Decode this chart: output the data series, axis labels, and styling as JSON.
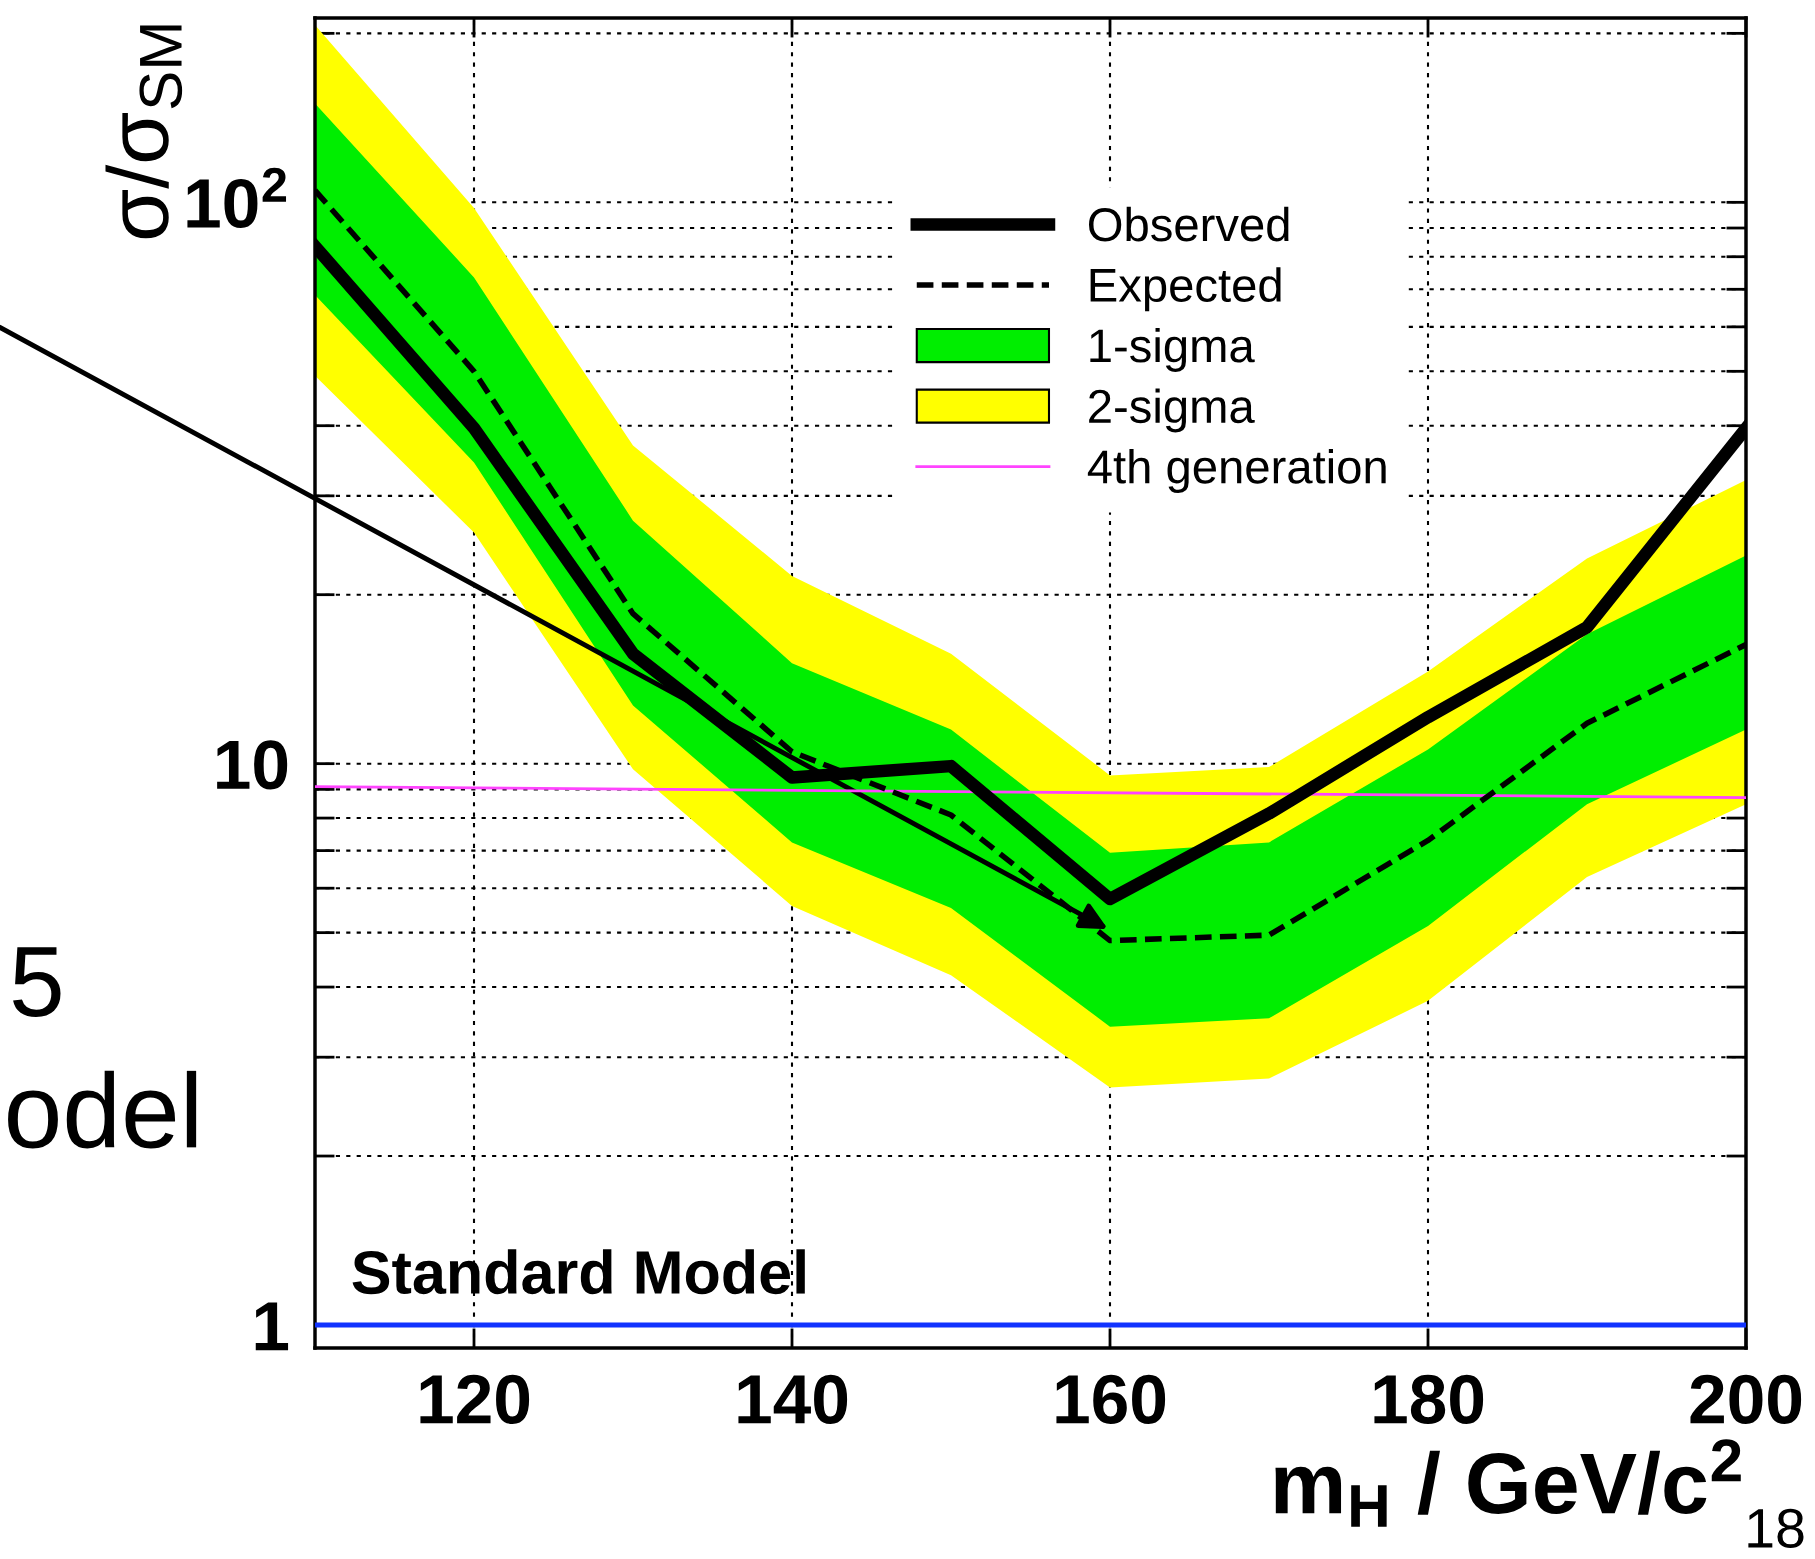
{
  "chart_data": {
    "type": "line",
    "ylabel": "σ/σ$_{SM}$",
    "xlabel": "m$_{H}$ / GeV/c$^{2}$",
    "x": [
      110,
      120,
      130,
      140,
      150,
      160,
      170,
      180,
      190,
      200
    ],
    "series": [
      {
        "name": "Observed",
        "color": "#000000",
        "line_style": "solid",
        "values": [
          83.5,
          39.6,
          15.7,
          9.45,
          9.9,
          5.74,
          8.15,
          12.1,
          17.5,
          39.6
        ]
      },
      {
        "name": "Expected",
        "color": "#000000",
        "line_style": "dashed",
        "values": [
          105,
          50,
          18.5,
          10.5,
          8.1,
          4.84,
          4.95,
          7.3,
          11.8,
          16.3
        ]
      },
      {
        "name": "1-sigma",
        "type": "area",
        "color": "#00ee00",
        "values": [
          null,
          null,
          null,
          null,
          null,
          null,
          null,
          null,
          null,
          null
        ],
        "lower": [
          68.4,
          34.4,
          12.7,
          7.24,
          5.53,
          3.4,
          3.52,
          5.14,
          8.47,
          11.5
        ],
        "upper": [
          150,
          73.5,
          27.1,
          15.1,
          11.5,
          6.94,
          7.24,
          10.6,
          17.0,
          23.5
        ]
      },
      {
        "name": "2-sigma",
        "type": "area",
        "color": "#ffff00",
        "values": [
          null,
          null,
          null,
          null,
          null,
          null,
          null,
          null,
          null,
          null
        ],
        "lower": [
          49.1,
          25.8,
          9.77,
          5.58,
          4.2,
          2.65,
          2.75,
          3.78,
          6.28,
          8.47
        ],
        "upper": [
          207,
          97.7,
          36.9,
          21.6,
          15.7,
          9.53,
          9.86,
          14.6,
          23.2,
          32.0
        ]
      },
      {
        "name": "4th generation",
        "color": "#ff44ff",
        "line_style": "solid",
        "x": [
          110,
          200
        ],
        "values": [
          9.1,
          8.7
        ]
      }
    ],
    "ref_lines": [
      {
        "axis": "y",
        "value": 1,
        "label": "Standard Model",
        "color": "#1133ff"
      }
    ],
    "annotations": [
      "5",
      "odel",
      "18"
    ],
    "log": "y",
    "xlim": [
      110,
      200
    ],
    "ylim": [
      0.91,
      213
    ],
    "xticks": [
      120,
      140,
      160,
      180,
      200
    ],
    "yticks": [
      1,
      {
        "value": 2,
        "label": null
      },
      {
        "value": 3,
        "label": null
      },
      {
        "value": 4,
        "label": null
      },
      {
        "value": 5,
        "label": null
      },
      {
        "value": 6,
        "label": null
      },
      {
        "value": 7,
        "label": null
      },
      {
        "value": 8,
        "label": null
      },
      {
        "value": 9,
        "label": null
      },
      10,
      {
        "value": 20,
        "label": null
      },
      {
        "value": 30,
        "label": null
      },
      {
        "value": 40,
        "label": null
      },
      {
        "value": 50,
        "label": null
      },
      {
        "value": 60,
        "label": null
      },
      {
        "value": 70,
        "label": null
      },
      {
        "value": 80,
        "label": null
      },
      {
        "value": 90,
        "label": null
      },
      {
        "value": 100,
        "label": "10$^{2}$"
      },
      {
        "value": 200,
        "label": null
      }
    ],
    "grid": true,
    "legend": "top right"
  }
}
